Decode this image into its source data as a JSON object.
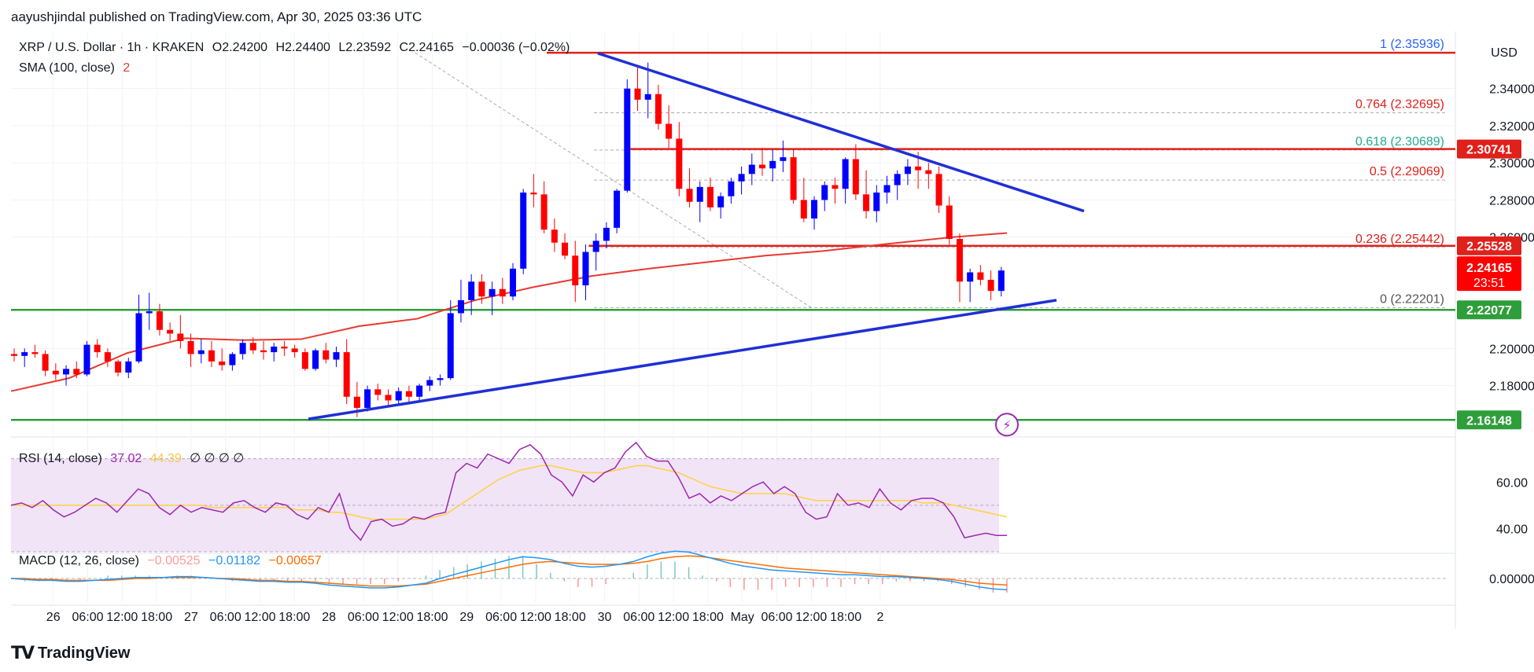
{
  "header": {
    "publisher_line": "aayushjindal published on TradingView.com, Apr 30, 2025 03:36 UTC"
  },
  "legend": {
    "symbol": "XRP / U.S. Dollar · 1h · KRAKEN",
    "open": "O2.24200",
    "high": "H2.24400",
    "low": "L2.23592",
    "close": "C2.24165",
    "change": "−0.00036 (−0.02%)",
    "sma_label": "SMA (100, close)",
    "sma_value": "2",
    "rsi_label": "RSI (14, close)",
    "rsi_value": "37.02",
    "rsi_ma": "44.39",
    "rsi_extra": "∅ ∅ ∅ ∅",
    "macd_label": "MACD (12, 26, close)",
    "macd_hist": "−0.00525",
    "macd_line": "−0.01182",
    "macd_signal": "−0.00657"
  },
  "colors": {
    "up": "#0000ff",
    "down": "#ff0000",
    "sma": "#e8392f",
    "trend": "#1f2fd6",
    "resistance": "#e0201a",
    "support": "#2e9e3a",
    "fib_text_red": "#e0201a",
    "fib_text_green": "#22ab94",
    "fib_text_blue": "#2962ff",
    "rsi_line": "#9c27b0",
    "rsi_ma": "#ffd23f",
    "rsi_band": "#f1e4f7",
    "macd_line": "#2196f3",
    "macd_signal": "#ff6d00"
  },
  "footer": {
    "brand": "TradingView"
  },
  "chart_data": {
    "type": "candlestick",
    "title": "XRP / U.S. Dollar · 1h · KRAKEN",
    "price_axis": {
      "currency": "USD",
      "ylim": [
        2.154,
        2.364
      ],
      "ticks": [
        "2.34000",
        "2.32000",
        "2.30000",
        "2.28000",
        "2.26000",
        "2.20000",
        "2.18000"
      ],
      "tick_values": [
        2.34,
        2.32,
        2.3,
        2.28,
        2.26,
        2.2,
        2.18
      ]
    },
    "time_axis": {
      "labels": [
        "26",
        "06:00",
        "12:00",
        "18:00",
        "27",
        "06:00",
        "12:00",
        "18:00",
        "28",
        "06:00",
        "12:00",
        "18:00",
        "29",
        "06:00",
        "12:00",
        "18:00",
        "30",
        "06:00",
        "12:00",
        "18:00",
        "May",
        "06:00",
        "12:00",
        "18:00",
        "2"
      ],
      "label_bar_index": [
        12,
        18,
        24,
        30,
        36,
        42,
        48,
        54,
        60,
        66,
        72,
        78,
        84,
        90,
        96,
        102,
        108,
        114,
        120,
        126,
        132,
        138,
        144,
        150,
        156
      ]
    },
    "candles_ohlc": [
      [
        2.197,
        2.2,
        2.193,
        2.196
      ],
      [
        2.196,
        2.2,
        2.19,
        2.198
      ],
      [
        2.198,
        2.202,
        2.195,
        2.197
      ],
      [
        2.197,
        2.199,
        2.185,
        2.188
      ],
      [
        2.188,
        2.192,
        2.183,
        2.186
      ],
      [
        2.186,
        2.191,
        2.18,
        2.189
      ],
      [
        2.189,
        2.193,
        2.184,
        2.186
      ],
      [
        2.186,
        2.204,
        2.185,
        2.202
      ],
      [
        2.202,
        2.205,
        2.195,
        2.198
      ],
      [
        2.198,
        2.2,
        2.19,
        2.193
      ],
      [
        2.193,
        2.194,
        2.185,
        2.187
      ],
      [
        2.187,
        2.195,
        2.184,
        2.193
      ],
      [
        2.193,
        2.229,
        2.192,
        2.219
      ],
      [
        2.219,
        2.23,
        2.21,
        2.22
      ],
      [
        2.22,
        2.224,
        2.207,
        2.21
      ],
      [
        2.21,
        2.214,
        2.204,
        2.208
      ],
      [
        2.208,
        2.218,
        2.2,
        2.204
      ],
      [
        2.204,
        2.208,
        2.19,
        2.197
      ],
      [
        2.197,
        2.205,
        2.192,
        2.199
      ],
      [
        2.199,
        2.204,
        2.19,
        2.193
      ],
      [
        2.193,
        2.2,
        2.188,
        2.191
      ],
      [
        2.191,
        2.198,
        2.188,
        2.197
      ],
      [
        2.197,
        2.205,
        2.194,
        2.203
      ],
      [
        2.203,
        2.206,
        2.197,
        2.199
      ],
      [
        2.199,
        2.204,
        2.194,
        2.198
      ],
      [
        2.198,
        2.203,
        2.193,
        2.201
      ],
      [
        2.201,
        2.204,
        2.196,
        2.2
      ],
      [
        2.2,
        2.202,
        2.195,
        2.198
      ],
      [
        2.198,
        2.2,
        2.188,
        2.189
      ],
      [
        2.189,
        2.2,
        2.188,
        2.199
      ],
      [
        2.199,
        2.203,
        2.192,
        2.194
      ],
      [
        2.194,
        2.201,
        2.19,
        2.198
      ],
      [
        2.198,
        2.205,
        2.17,
        2.174
      ],
      [
        2.174,
        2.182,
        2.163,
        2.168
      ],
      [
        2.168,
        2.18,
        2.166,
        2.178
      ],
      [
        2.178,
        2.181,
        2.172,
        2.175
      ],
      [
        2.175,
        2.178,
        2.169,
        2.172
      ],
      [
        2.172,
        2.179,
        2.17,
        2.177
      ],
      [
        2.177,
        2.18,
        2.171,
        2.174
      ],
      [
        2.174,
        2.181,
        2.172,
        2.18
      ],
      [
        2.18,
        2.185,
        2.177,
        2.183
      ],
      [
        2.183,
        2.186,
        2.18,
        2.184
      ],
      [
        2.184,
        2.226,
        2.183,
        2.219
      ],
      [
        2.219,
        2.237,
        2.214,
        2.226
      ],
      [
        2.226,
        2.24,
        2.218,
        2.236
      ],
      [
        2.236,
        2.24,
        2.224,
        2.228
      ],
      [
        2.228,
        2.236,
        2.218,
        2.232
      ],
      [
        2.232,
        2.238,
        2.224,
        2.228
      ],
      [
        2.228,
        2.246,
        2.226,
        2.243
      ],
      [
        2.243,
        2.286,
        2.24,
        2.284
      ],
      [
        2.284,
        2.294,
        2.276,
        2.283
      ],
      [
        2.283,
        2.29,
        2.262,
        2.264
      ],
      [
        2.264,
        2.27,
        2.252,
        2.257
      ],
      [
        2.257,
        2.262,
        2.248,
        2.25
      ],
      [
        2.25,
        2.258,
        2.225,
        2.234
      ],
      [
        2.234,
        2.256,
        2.226,
        2.252
      ],
      [
        2.252,
        2.262,
        2.242,
        2.258
      ],
      [
        2.258,
        2.268,
        2.254,
        2.265
      ],
      [
        2.265,
        2.286,
        2.262,
        2.285
      ],
      [
        2.285,
        2.345,
        2.284,
        2.34
      ],
      [
        2.34,
        2.352,
        2.328,
        2.334
      ],
      [
        2.334,
        2.354,
        2.324,
        2.337
      ],
      [
        2.337,
        2.342,
        2.318,
        2.321
      ],
      [
        2.321,
        2.331,
        2.308,
        2.313
      ],
      [
        2.313,
        2.322,
        2.282,
        2.286
      ],
      [
        2.286,
        2.297,
        2.276,
        2.279
      ],
      [
        2.279,
        2.29,
        2.268,
        2.287
      ],
      [
        2.287,
        2.292,
        2.274,
        2.276
      ],
      [
        2.276,
        2.284,
        2.27,
        2.282
      ],
      [
        2.282,
        2.292,
        2.278,
        2.29
      ],
      [
        2.29,
        2.298,
        2.283,
        2.294
      ],
      [
        2.294,
        2.305,
        2.288,
        2.299
      ],
      [
        2.299,
        2.308,
        2.293,
        2.297
      ],
      [
        2.297,
        2.307,
        2.29,
        2.301
      ],
      [
        2.301,
        2.312,
        2.295,
        2.303
      ],
      [
        2.303,
        2.307,
        2.278,
        2.28
      ],
      [
        2.28,
        2.292,
        2.268,
        2.27
      ],
      [
        2.27,
        2.282,
        2.264,
        2.28
      ],
      [
        2.28,
        2.29,
        2.274,
        2.288
      ],
      [
        2.288,
        2.292,
        2.278,
        2.286
      ],
      [
        2.286,
        2.303,
        2.278,
        2.302
      ],
      [
        2.302,
        2.31,
        2.28,
        2.283
      ],
      [
        2.283,
        2.296,
        2.27,
        2.274
      ],
      [
        2.274,
        2.288,
        2.268,
        2.284
      ],
      [
        2.284,
        2.293,
        2.278,
        2.288
      ],
      [
        2.288,
        2.296,
        2.28,
        2.294
      ],
      [
        2.294,
        2.302,
        2.288,
        2.298
      ],
      [
        2.298,
        2.306,
        2.286,
        2.296
      ],
      [
        2.296,
        2.3,
        2.286,
        2.294
      ],
      [
        2.294,
        2.298,
        2.273,
        2.277
      ],
      [
        2.277,
        2.282,
        2.256,
        2.259
      ],
      [
        2.259,
        2.262,
        2.225,
        2.236
      ],
      [
        2.236,
        2.243,
        2.225,
        2.241
      ],
      [
        2.241,
        2.245,
        2.234,
        2.237
      ],
      [
        2.237,
        2.242,
        2.226,
        2.231
      ],
      [
        2.231,
        2.244,
        2.228,
        2.242
      ]
    ],
    "candle_start_bar": 0,
    "candle_x_offset_bars": 13,
    "sma100": [
      [
        0,
        2.177
      ],
      [
        12,
        2.184
      ],
      [
        24,
        2.1975
      ],
      [
        36,
        2.2055
      ],
      [
        48,
        2.2045
      ],
      [
        60,
        2.205
      ],
      [
        72,
        2.212
      ],
      [
        84,
        2.216
      ],
      [
        96,
        2.226
      ],
      [
        108,
        2.233
      ],
      [
        120,
        2.239
      ],
      [
        132,
        2.243
      ],
      [
        144,
        2.2465
      ],
      [
        156,
        2.25
      ],
      [
        168,
        2.2525
      ],
      [
        180,
        2.256
      ],
      [
        195,
        2.26
      ],
      [
        206,
        2.2622
      ]
    ],
    "trend_lines": [
      {
        "name": "descending",
        "from": [
          88,
          2.359
        ],
        "to": [
          126,
          2.274
        ]
      },
      {
        "name": "ascending",
        "from": [
          33,
          2.162
        ],
        "to": [
          129,
          2.226
        ]
      }
    ],
    "horizontal_levels": [
      {
        "name": "top",
        "price": 2.3593,
        "color": "resistance",
        "from_bar": 0.8,
        "to_bar": 1.0,
        "from_frac": 0.355
      },
      {
        "name": "resistance",
        "price": 2.3074,
        "color": "resistance",
        "badge": "2.30741",
        "from_frac": 0.425
      },
      {
        "name": "resistance-2",
        "price": 2.2553,
        "color": "resistance",
        "badge": "2.25528",
        "from_frac": 0.4
      },
      {
        "name": "support",
        "price": 2.2208,
        "color": "support",
        "badge": "2.22077",
        "from_frac": 0.0
      },
      {
        "name": "support-2",
        "price": 2.1615,
        "color": "support",
        "badge": "2.16148",
        "from_frac": 0.0
      }
    ],
    "current_price": {
      "badge": "2.24165",
      "countdown": "23:51",
      "price": 2.2416
    },
    "fibonacci": [
      {
        "level": "1",
        "value": "(2.35936)",
        "price": 2.35936,
        "color": "fib_text_blue"
      },
      {
        "level": "0.764",
        "value": "(2.32695)",
        "price": 2.32695,
        "color": "fib_text_red"
      },
      {
        "level": "0.618",
        "value": "(2.30689)",
        "price": 2.30689,
        "color": "fib_text_green"
      },
      {
        "level": "0.5",
        "value": "(2.29069)",
        "price": 2.29069,
        "color": "fib_text_red"
      },
      {
        "level": "0.236",
        "value": "(2.25442)",
        "price": 2.25442,
        "color": "fib_text_red"
      },
      {
        "level": "0",
        "value": "(2.22201)",
        "price": 2.22201,
        "color": "fib_text_dark"
      }
    ],
    "rsi": {
      "ylim": [
        30,
        78
      ],
      "ticks": [
        "60.00",
        "40.00"
      ],
      "tick_values": [
        60,
        40
      ],
      "band": [
        30,
        70
      ],
      "values": [
        50,
        51,
        49,
        52,
        48,
        45,
        47,
        50,
        53,
        51,
        47,
        52,
        57,
        55,
        49,
        46,
        50,
        47,
        49,
        48,
        47,
        51,
        52,
        49,
        47,
        51,
        50,
        46,
        44,
        49,
        47,
        55,
        40,
        35,
        43,
        44,
        41,
        42,
        45,
        44,
        46,
        47,
        64,
        68,
        66,
        72,
        70,
        68,
        74,
        76,
        72,
        63,
        60,
        54,
        63,
        60,
        64,
        66,
        73,
        77,
        71,
        69,
        69,
        62,
        53,
        55,
        51,
        54,
        52,
        55,
        58,
        60,
        55,
        58,
        55,
        47,
        44,
        45,
        55,
        50,
        51,
        49,
        57,
        51,
        48,
        52,
        53,
        53,
        51,
        45,
        36,
        37,
        38,
        37,
        37
      ],
      "ma": [
        50,
        50,
        50,
        50,
        50,
        50,
        50,
        50,
        50,
        50,
        50,
        50,
        50,
        50,
        50,
        50,
        50,
        50,
        50,
        49,
        49,
        49,
        49,
        49,
        49,
        49,
        49,
        48,
        48,
        48,
        47,
        47,
        46,
        45,
        44,
        44,
        44,
        44,
        44,
        44,
        45,
        46,
        49,
        52,
        55,
        58,
        61,
        63,
        65,
        66,
        67,
        67,
        66,
        65,
        64,
        64,
        64,
        65,
        66,
        67,
        67,
        66,
        65,
        64,
        62,
        60,
        58,
        57,
        56,
        55,
        55,
        55,
        55,
        55,
        54,
        53,
        52,
        52,
        52,
        52,
        52,
        52,
        52,
        52,
        52,
        52,
        51,
        51,
        51,
        50,
        49,
        48,
        47,
        46,
        45
      ]
    },
    "macd": {
      "ylim": [
        -0.025,
        0.025
      ],
      "ticks": [
        "0.00000"
      ],
      "tick_values": [
        0
      ],
      "macd_line": [
        0.0,
        -0.001,
        -0.002,
        -0.002,
        -0.003,
        -0.003,
        -0.002,
        -0.001,
        0.0,
        0.001,
        0.001,
        0.001,
        0.002,
        0.002,
        0.001,
        0.0,
        -0.001,
        -0.002,
        -0.003,
        -0.003,
        -0.004,
        -0.004,
        -0.005,
        -0.007,
        -0.008,
        -0.009,
        -0.01,
        -0.01,
        -0.009,
        -0.007,
        -0.005,
        0.0,
        0.004,
        0.008,
        0.012,
        0.016,
        0.02,
        0.023,
        0.022,
        0.02,
        0.016,
        0.013,
        0.012,
        0.013,
        0.015,
        0.018,
        0.023,
        0.027,
        0.029,
        0.028,
        0.024,
        0.02,
        0.016,
        0.013,
        0.011,
        0.009,
        0.008,
        0.007,
        0.006,
        0.005,
        0.004,
        0.004,
        0.003,
        0.002,
        0.002,
        0.001,
        0.0,
        -0.001,
        -0.003,
        -0.006,
        -0.009,
        -0.011,
        -0.012
      ],
      "signal_line": [
        0.0,
        0.0,
        -0.001,
        -0.001,
        -0.002,
        -0.002,
        -0.002,
        -0.002,
        -0.001,
        0.0,
        0.0,
        0.001,
        0.001,
        0.001,
        0.001,
        0.0,
        0.0,
        -0.001,
        -0.002,
        -0.002,
        -0.003,
        -0.003,
        -0.004,
        -0.005,
        -0.006,
        -0.007,
        -0.008,
        -0.008,
        -0.008,
        -0.007,
        -0.006,
        -0.003,
        0.0,
        0.003,
        0.006,
        0.009,
        0.012,
        0.015,
        0.017,
        0.018,
        0.017,
        0.016,
        0.015,
        0.015,
        0.015,
        0.016,
        0.018,
        0.021,
        0.023,
        0.024,
        0.023,
        0.021,
        0.019,
        0.017,
        0.015,
        0.013,
        0.011,
        0.01,
        0.009,
        0.008,
        0.007,
        0.006,
        0.005,
        0.004,
        0.003,
        0.002,
        0.001,
        0.0,
        -0.001,
        -0.003,
        -0.005,
        -0.006,
        -0.007
      ]
    }
  }
}
